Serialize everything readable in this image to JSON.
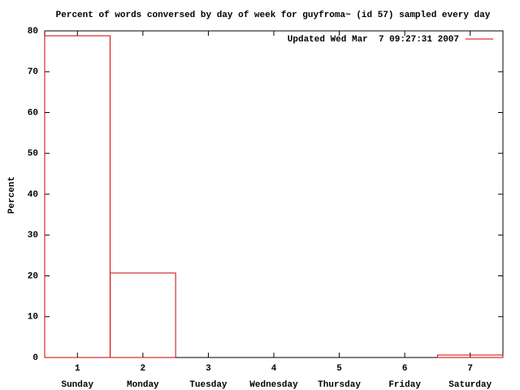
{
  "chart_data": {
    "type": "bar",
    "title": "Percent of words conversed by day of week for guyfroma~ (id 57) sampled every day",
    "ylabel": "Percent",
    "x": [
      1,
      2,
      3,
      4,
      5,
      6,
      7
    ],
    "categories": [
      "Sunday",
      "Monday",
      "Tuesday",
      "Wednesday",
      "Thursday",
      "Friday",
      "Saturday"
    ],
    "series": [
      {
        "name": "Updated Wed Mar  7 09:27:31 2007",
        "color": "#cc0000",
        "values": [
          78.8,
          20.7,
          0,
          0,
          0,
          0,
          0.6
        ]
      }
    ],
    "xlim": [
      0.5,
      7.5
    ],
    "xticks": [
      1,
      2,
      3,
      4,
      5,
      6,
      7
    ],
    "ylim": [
      0,
      80
    ],
    "yticks": [
      0,
      10,
      20,
      30,
      40,
      50,
      60,
      70,
      80
    ],
    "grid": false,
    "legend": "top-right"
  }
}
